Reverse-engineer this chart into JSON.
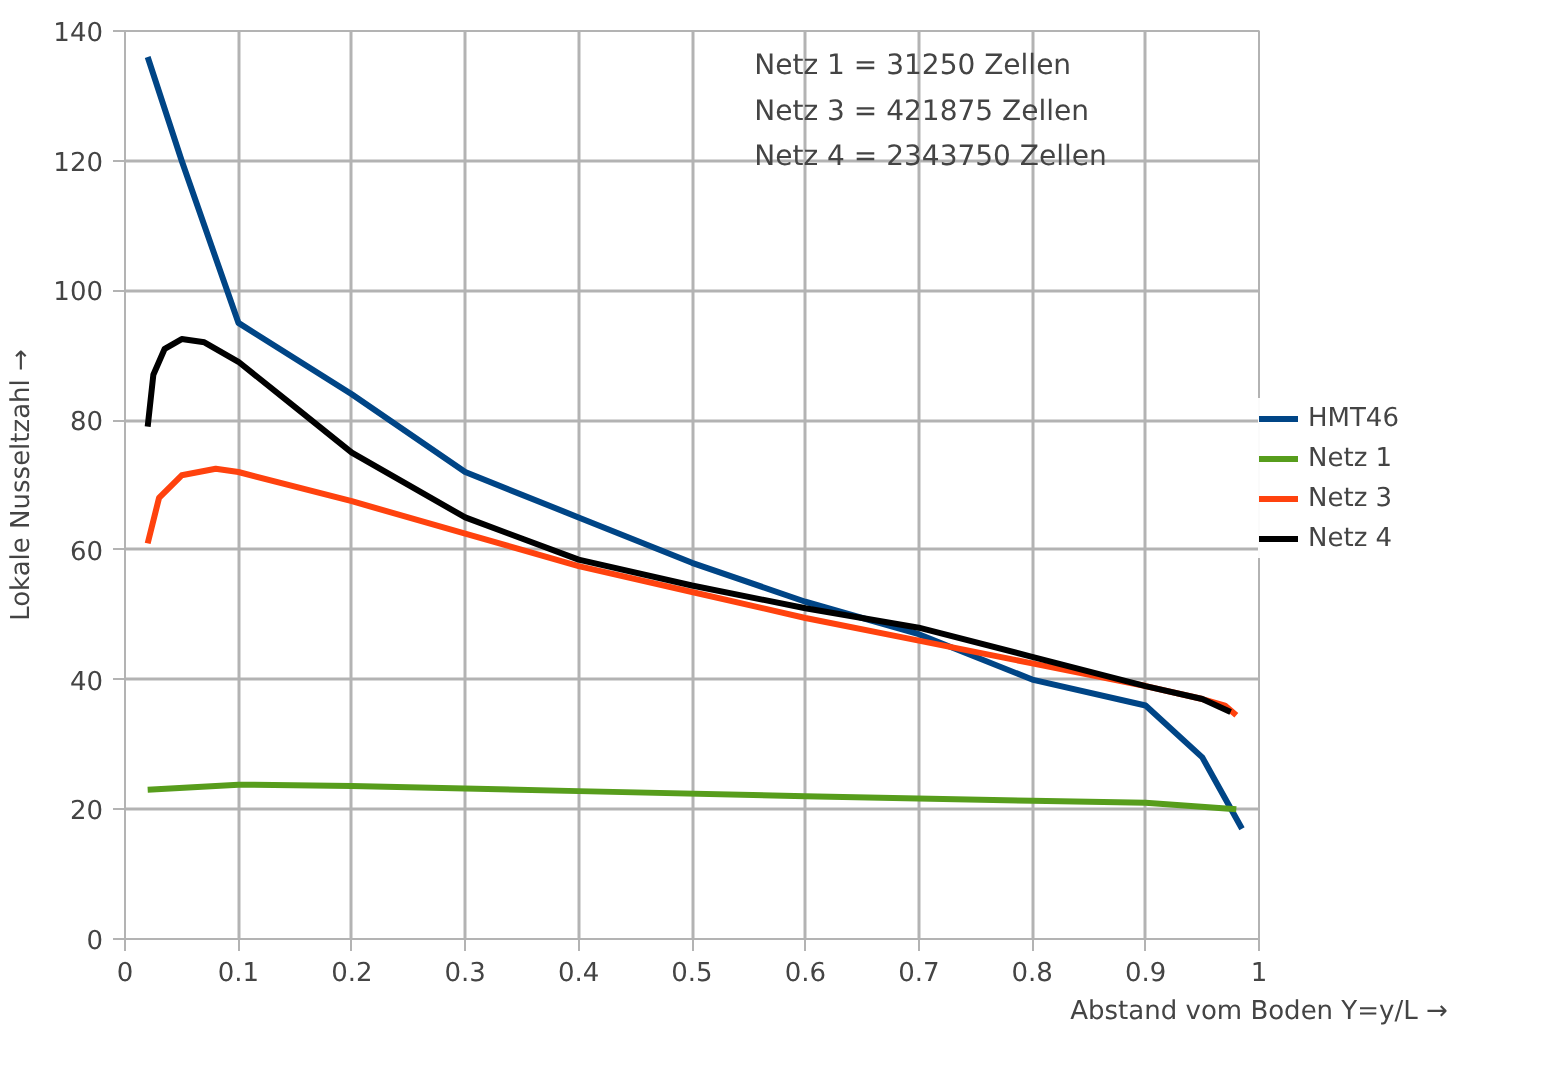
{
  "chart_data": {
    "type": "line",
    "xlabel": "Abstand vom Boden Y=y/L →",
    "ylabel": "Lokale Nusseltzahl →",
    "xlim": [
      0,
      1
    ],
    "xticks": [
      0,
      0.1,
      0.2,
      0.3,
      0.4,
      0.5,
      0.6,
      0.7,
      0.8,
      0.9,
      1
    ],
    "ylim": [
      0,
      140
    ],
    "yticks": [
      0,
      20,
      40,
      60,
      80,
      100,
      120,
      140
    ],
    "grid": true,
    "legend": "right",
    "marker": "none",
    "line_style": "solid",
    "annotations": [
      "Netz 1 = 31250    Zellen",
      "Netz 3 = 421875  Zellen",
      "Netz 4 = 2343750 Zellen"
    ],
    "series": [
      {
        "name": "HMT46",
        "color": "#004586",
        "x": [
          0.02,
          0.05,
          0.1,
          0.2,
          0.3,
          0.4,
          0.5,
          0.6,
          0.7,
          0.8,
          0.9,
          0.95,
          0.985
        ],
        "values": [
          136,
          120,
          95,
          84,
          72,
          65,
          58,
          52,
          47,
          40,
          36,
          28,
          17
        ]
      },
      {
        "name": "Netz 1",
        "color": "#579d1c",
        "x": [
          0.02,
          0.1,
          0.2,
          0.4,
          0.6,
          0.8,
          0.9,
          0.98
        ],
        "values": [
          23,
          23.8,
          23.6,
          22.8,
          22,
          21.3,
          21,
          20
        ]
      },
      {
        "name": "Netz 3",
        "color": "#ff420e",
        "x": [
          0.02,
          0.03,
          0.05,
          0.08,
          0.1,
          0.2,
          0.3,
          0.4,
          0.5,
          0.6,
          0.7,
          0.8,
          0.9,
          0.95,
          0.97,
          0.98
        ],
        "values": [
          61,
          68,
          71.5,
          72.5,
          72,
          67.5,
          62.5,
          57.5,
          53.5,
          49.5,
          46,
          42.5,
          39,
          37,
          36,
          34.5
        ]
      },
      {
        "name": "Netz 4",
        "color": "#000000",
        "x": [
          0.02,
          0.025,
          0.035,
          0.05,
          0.07,
          0.1,
          0.15,
          0.2,
          0.3,
          0.4,
          0.5,
          0.6,
          0.7,
          0.8,
          0.9,
          0.95,
          0.975
        ],
        "values": [
          79,
          87,
          91,
          92.5,
          92,
          89,
          82,
          75,
          65,
          58.5,
          54.5,
          51,
          48,
          43.5,
          39,
          37,
          35
        ]
      }
    ]
  }
}
